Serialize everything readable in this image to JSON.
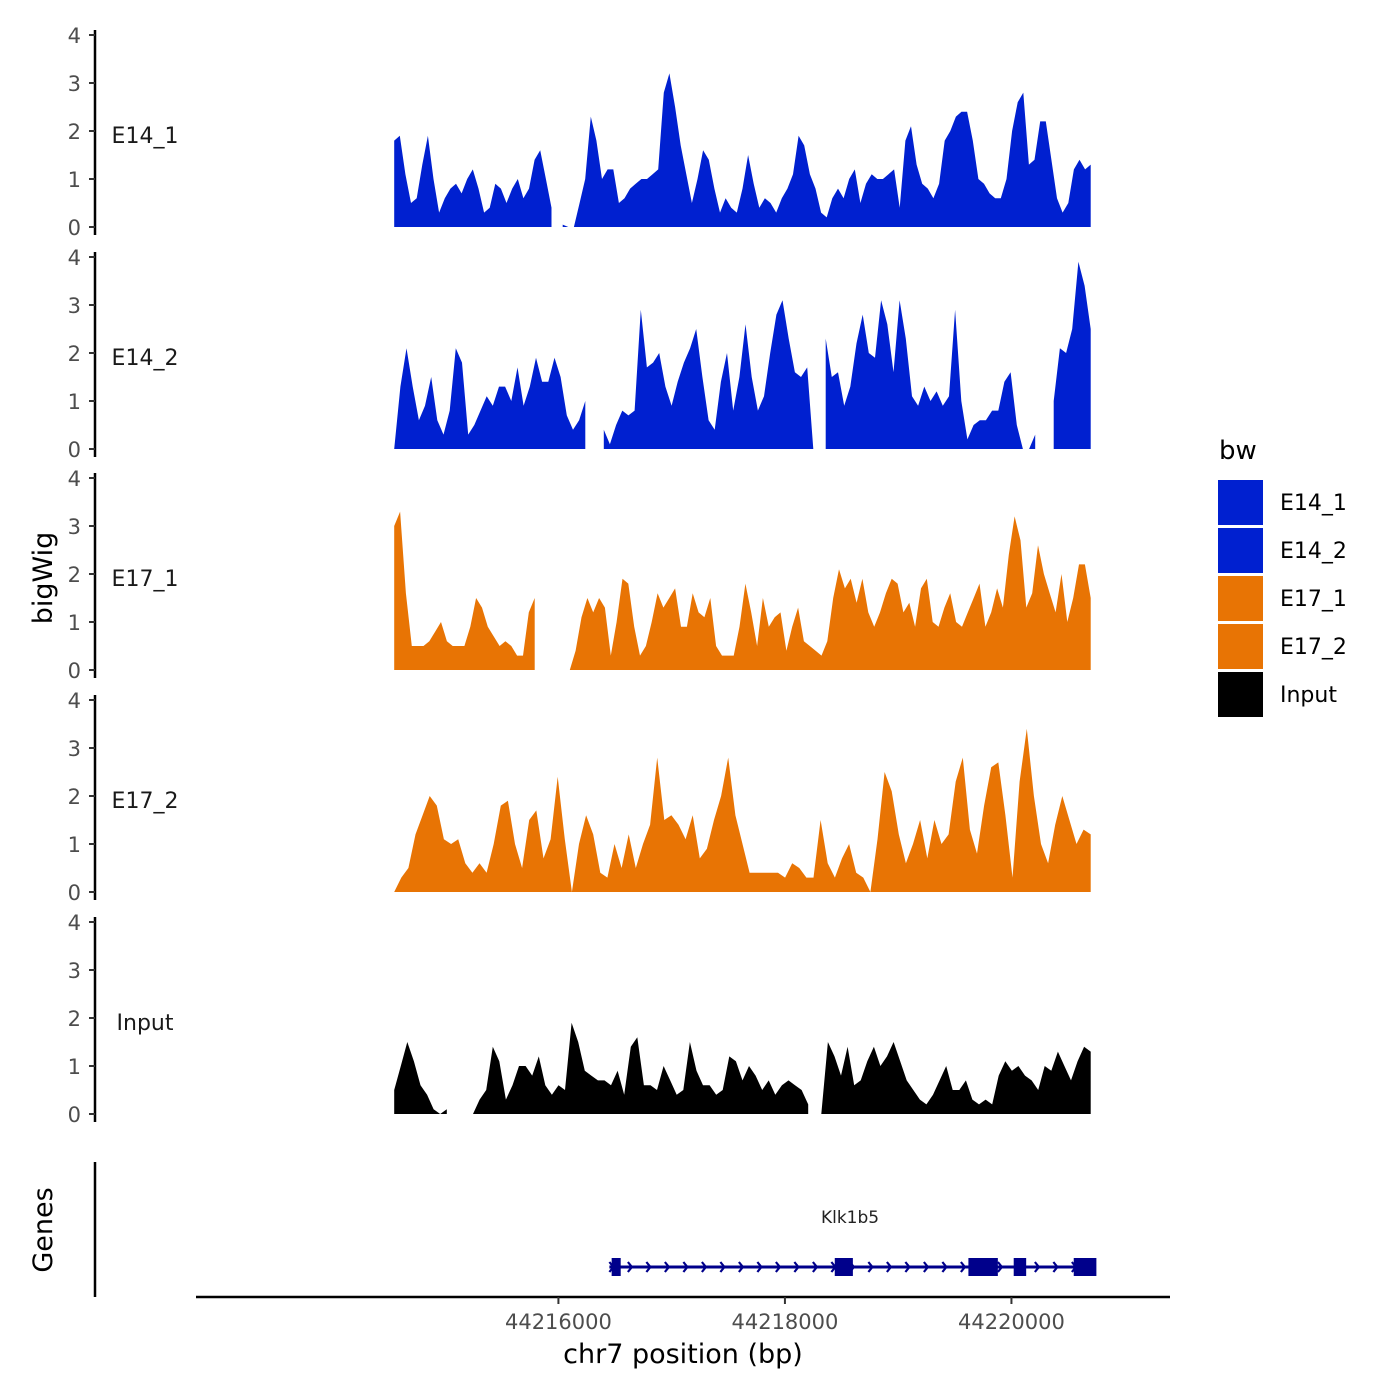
{
  "chart_data": {
    "type": "area",
    "chromosome": "chr7",
    "xlabel": "chr7 position (bp)",
    "ylabel": "bigWig",
    "genes_label": "Genes",
    "xlim": [
      44212800,
      44221400
    ],
    "xticks": [
      44216000,
      44218000,
      44220000
    ],
    "xtick_labels": [
      "44216000",
      "44218000",
      "44220000"
    ],
    "ylim": [
      0,
      4
    ],
    "yticks": [
      0,
      1,
      2,
      3,
      4
    ],
    "legend": {
      "title": "bw",
      "position": "right",
      "entries": [
        {
          "label": "E14_1",
          "color": "#0020D0"
        },
        {
          "label": "E14_2",
          "color": "#0020D0"
        },
        {
          "label": "E17_1",
          "color": "#E87404"
        },
        {
          "label": "E17_2",
          "color": "#E87404"
        },
        {
          "label": "Input",
          "color": "#000000"
        }
      ]
    },
    "series": [
      {
        "name": "E14_1",
        "color": "#0020D0",
        "x_start": 44214550,
        "x_end": 44220700,
        "gaps": [
          [
            44215980,
            44216020
          ]
        ],
        "values": [
          1.8,
          1.9,
          1.1,
          0.5,
          0.6,
          1.3,
          1.9,
          1.0,
          0.3,
          0.6,
          0.8,
          0.9,
          0.7,
          1.0,
          1.2,
          0.8,
          0.3,
          0.4,
          0.9,
          0.8,
          0.5,
          0.8,
          1.0,
          0.6,
          0.8,
          1.4,
          1.6,
          1.0,
          0.4,
          0.2,
          0.05,
          0.0,
          0.0,
          0.5,
          1.0,
          2.3,
          1.8,
          1.0,
          1.2,
          1.2,
          0.5,
          0.6,
          0.8,
          0.9,
          1.0,
          1.0,
          1.1,
          1.2,
          2.8,
          3.2,
          2.5,
          1.7,
          1.1,
          0.5,
          1.0,
          1.6,
          1.4,
          0.8,
          0.3,
          0.6,
          0.4,
          0.3,
          0.8,
          1.5,
          0.9,
          0.4,
          0.6,
          0.5,
          0.3,
          0.6,
          0.8,
          1.1,
          1.9,
          1.7,
          1.1,
          0.8,
          0.3,
          0.2,
          0.6,
          0.8,
          0.6,
          1.0,
          1.2,
          0.5,
          0.9,
          1.1,
          1.0,
          1.0,
          1.1,
          1.2,
          0.4,
          1.8,
          2.1,
          1.3,
          0.9,
          0.8,
          0.6,
          0.9,
          1.8,
          2.0,
          2.3,
          2.4,
          2.4,
          1.8,
          1.0,
          0.9,
          0.7,
          0.6,
          0.6,
          1.0,
          2.0,
          2.6,
          2.8,
          1.3,
          1.4,
          2.2,
          2.2,
          1.4,
          0.6,
          0.3,
          0.5,
          1.2,
          1.4,
          1.2,
          1.3
        ]
      },
      {
        "name": "E14_2",
        "color": "#0020D0",
        "x_start": 44214550,
        "x_end": 44220700,
        "gaps": [
          [
            44216280,
            44216380
          ],
          [
            44218300,
            44218340
          ],
          [
            44220250,
            44220320
          ]
        ],
        "values": [
          0.0,
          1.3,
          2.1,
          1.3,
          0.6,
          0.9,
          1.5,
          0.6,
          0.3,
          0.8,
          2.1,
          1.8,
          0.3,
          0.5,
          0.8,
          1.1,
          0.9,
          1.3,
          1.3,
          1.0,
          1.7,
          0.9,
          1.3,
          1.9,
          1.4,
          1.4,
          1.9,
          1.5,
          0.7,
          0.4,
          0.6,
          1.0,
          1.4,
          1.1,
          0.4,
          0.1,
          0.5,
          0.8,
          0.7,
          0.8,
          2.9,
          1.7,
          1.8,
          2.0,
          1.3,
          0.9,
          1.4,
          1.8,
          2.1,
          2.5,
          1.5,
          0.6,
          0.4,
          1.4,
          2.0,
          0.8,
          1.5,
          2.6,
          1.5,
          0.8,
          1.1,
          2.0,
          2.8,
          3.1,
          2.3,
          1.6,
          1.5,
          1.7,
          0.0,
          0.8,
          2.3,
          1.5,
          1.6,
          0.9,
          1.3,
          2.2,
          2.8,
          2.0,
          1.9,
          3.1,
          2.6,
          1.6,
          3.1,
          2.3,
          1.1,
          0.9,
          1.3,
          1.0,
          1.2,
          0.9,
          1.1,
          2.9,
          1.0,
          0.2,
          0.5,
          0.6,
          0.6,
          0.8,
          0.8,
          1.4,
          1.6,
          0.5,
          0.0,
          0.0,
          0.3,
          0.5,
          0.5,
          1.0,
          2.1,
          2.0,
          2.5,
          3.9,
          3.4,
          2.5
        ]
      },
      {
        "name": "E17_1",
        "color": "#E87404",
        "x_start": 44214550,
        "x_end": 44220700,
        "gaps": [
          [
            44215830,
            44215990
          ]
        ],
        "values": [
          3.0,
          3.3,
          1.6,
          0.5,
          0.5,
          0.5,
          0.6,
          0.8,
          1.0,
          0.6,
          0.5,
          0.5,
          0.5,
          0.9,
          1.5,
          1.3,
          0.9,
          0.7,
          0.5,
          0.6,
          0.5,
          0.3,
          0.3,
          1.2,
          1.5,
          0.6,
          0.4,
          0.2,
          0.0,
          0.0,
          0.0,
          0.4,
          1.1,
          1.5,
          1.2,
          1.5,
          1.3,
          0.3,
          1.0,
          1.9,
          1.8,
          0.9,
          0.3,
          0.5,
          1.0,
          1.6,
          1.3,
          1.5,
          1.7,
          0.9,
          0.9,
          1.6,
          1.2,
          1.1,
          1.5,
          0.5,
          0.3,
          0.3,
          0.3,
          0.9,
          1.8,
          1.2,
          0.5,
          1.5,
          0.9,
          1.1,
          1.2,
          0.4,
          0.9,
          1.3,
          0.6,
          0.5,
          0.4,
          0.3,
          0.6,
          1.5,
          2.1,
          1.7,
          1.9,
          1.4,
          1.9,
          1.2,
          0.9,
          1.2,
          1.6,
          1.9,
          1.8,
          1.2,
          1.4,
          0.9,
          1.7,
          1.9,
          1.0,
          0.9,
          1.3,
          1.6,
          1.0,
          0.9,
          1.2,
          1.5,
          1.8,
          0.9,
          1.2,
          1.7,
          1.3,
          2.4,
          3.2,
          2.7,
          1.3,
          1.6,
          2.6,
          2.0,
          1.6,
          1.2,
          2.0,
          1.0,
          1.5,
          2.2,
          2.2,
          1.5
        ]
      },
      {
        "name": "E17_2",
        "color": "#E87404",
        "x_start": 44214550,
        "x_end": 44220700,
        "gaps": [
          [
            44216130,
            44216150
          ],
          [
            44218650,
            44218680
          ]
        ],
        "values": [
          0.0,
          0.3,
          0.5,
          1.2,
          1.6,
          2.0,
          1.8,
          1.1,
          1.0,
          1.1,
          0.6,
          0.4,
          0.6,
          0.4,
          1.0,
          1.8,
          1.9,
          1.0,
          0.5,
          1.5,
          1.7,
          0.7,
          1.1,
          2.4,
          1.1,
          0.0,
          1.0,
          1.6,
          1.2,
          0.4,
          0.3,
          1.0,
          0.5,
          1.2,
          0.5,
          1.0,
          1.4,
          2.8,
          1.5,
          1.6,
          1.4,
          1.1,
          1.6,
          0.7,
          0.9,
          1.5,
          2.0,
          2.8,
          1.6,
          1.0,
          0.4,
          0.4,
          0.4,
          0.4,
          0.4,
          0.3,
          0.6,
          0.5,
          0.3,
          0.3,
          1.5,
          0.6,
          0.3,
          0.7,
          1.0,
          0.4,
          0.3,
          0.0,
          1.1,
          2.5,
          2.1,
          1.2,
          0.6,
          1.0,
          1.5,
          0.7,
          1.5,
          1.0,
          1.2,
          2.3,
          2.8,
          1.3,
          0.8,
          1.8,
          2.6,
          2.7,
          1.6,
          0.3,
          2.3,
          3.4,
          2.0,
          1.0,
          0.6,
          1.4,
          2.0,
          1.5,
          1.0,
          1.3,
          1.2
        ]
      },
      {
        "name": "Input",
        "color": "#000000",
        "x_start": 44214550,
        "x_end": 44220700,
        "gaps": [
          [
            44215040,
            44215200
          ],
          [
            44218220,
            44218320
          ]
        ],
        "values": [
          0.5,
          1.0,
          1.5,
          1.1,
          0.6,
          0.4,
          0.1,
          0.0,
          0.1,
          0.2,
          0.0,
          0.0,
          0.0,
          0.3,
          0.5,
          1.4,
          1.1,
          0.3,
          0.6,
          1.0,
          1.0,
          0.8,
          1.2,
          0.6,
          0.4,
          0.6,
          0.5,
          1.9,
          1.5,
          0.9,
          0.8,
          0.7,
          0.7,
          0.6,
          0.9,
          0.4,
          1.4,
          1.6,
          0.6,
          0.6,
          0.5,
          1.0,
          0.7,
          0.4,
          0.5,
          1.5,
          0.9,
          0.6,
          0.6,
          0.4,
          0.5,
          1.2,
          1.1,
          0.7,
          1.0,
          0.8,
          0.5,
          0.7,
          0.4,
          0.6,
          0.7,
          0.6,
          0.5,
          0.2,
          0.0,
          0.0,
          1.5,
          1.2,
          0.8,
          1.4,
          0.6,
          0.7,
          1.1,
          1.4,
          1.0,
          1.2,
          1.5,
          1.1,
          0.7,
          0.5,
          0.3,
          0.2,
          0.4,
          0.7,
          1.0,
          0.5,
          0.5,
          0.7,
          0.3,
          0.2,
          0.3,
          0.2,
          0.8,
          1.1,
          0.9,
          1.0,
          0.8,
          0.7,
          0.5,
          1.0,
          0.9,
          1.3,
          1.0,
          0.7,
          1.1,
          1.4,
          1.3
        ]
      }
    ],
    "genes": [
      {
        "name": "Klk1b5",
        "start": 44216450,
        "end": 44220700,
        "strand": "+",
        "color": "#00008B",
        "exons": [
          [
            44216470,
            44216550
          ],
          [
            44218440,
            44218600
          ],
          [
            44219620,
            44219880
          ],
          [
            44220020,
            44220130
          ],
          [
            44220550,
            44220750
          ]
        ]
      }
    ]
  }
}
